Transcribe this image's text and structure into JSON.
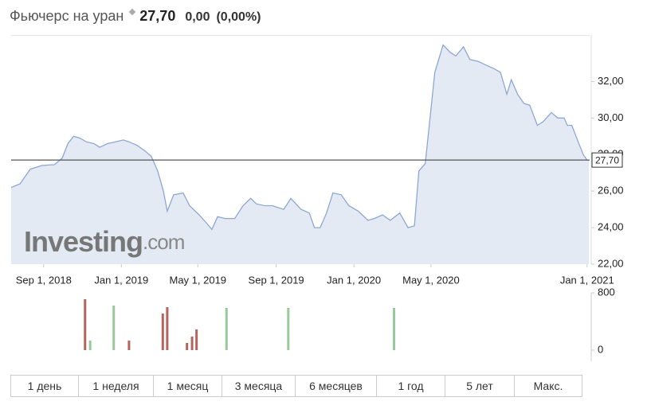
{
  "header": {
    "title": "Фьючерс на уран",
    "price": "27,70",
    "change": "0,00",
    "change_pct": "(0,00%)"
  },
  "watermark": {
    "brand": "Investing",
    "suffix": ".com"
  },
  "chart_data": [
    {
      "type": "area",
      "color": "#8ea7d3",
      "fill_color": "#e3eaf4",
      "x": [
        "2018-07-12",
        "2018-07-26",
        "2018-08-11",
        "2018-08-29",
        "2018-09-18",
        "2018-09-30",
        "2018-10-09",
        "2018-10-18",
        "2018-10-28",
        "2018-11-07",
        "2018-11-19",
        "2018-11-28",
        "2018-12-10",
        "2018-12-23",
        "2019-01-04",
        "2019-01-13",
        "2019-01-26",
        "2019-02-07",
        "2019-02-17",
        "2019-02-27",
        "2019-03-08",
        "2019-03-14",
        "2019-03-24",
        "2019-04-08",
        "2019-04-18",
        "2019-05-03",
        "2019-05-16",
        "2019-05-23",
        "2019-06-01",
        "2019-06-13",
        "2019-06-28",
        "2019-07-11",
        "2019-07-23",
        "2019-08-01",
        "2019-08-14",
        "2019-08-26",
        "2019-09-13",
        "2019-09-24",
        "2019-10-10",
        "2019-10-23",
        "2019-10-31",
        "2019-11-09",
        "2019-11-19",
        "2019-11-29",
        "2019-12-12",
        "2019-12-24",
        "2020-01-08",
        "2020-01-23",
        "2020-02-02",
        "2020-02-15",
        "2020-02-27",
        "2020-03-13",
        "2020-03-26",
        "2020-04-05",
        "2020-04-12",
        "2020-04-22",
        "2020-05-07",
        "2020-05-20",
        "2020-05-31",
        "2020-06-09",
        "2020-06-21",
        "2020-07-01",
        "2020-07-14",
        "2020-07-26",
        "2020-08-08",
        "2020-08-18",
        "2020-08-28",
        "2020-09-04",
        "2020-09-14",
        "2020-09-24",
        "2020-10-03",
        "2020-10-15",
        "2020-10-24",
        "2020-11-06",
        "2020-11-16",
        "2020-11-26",
        "2020-12-01",
        "2020-12-08",
        "2020-12-18",
        "2020-12-26",
        "2021-01-01",
        "2021-01-04"
      ],
      "values": [
        26.2,
        26.4,
        27.2,
        27.4,
        27.45,
        27.8,
        28.6,
        29.0,
        28.9,
        28.7,
        28.6,
        28.4,
        28.6,
        28.7,
        28.8,
        28.7,
        28.5,
        28.2,
        27.9,
        27.1,
        26.0,
        24.9,
        25.8,
        25.9,
        25.2,
        24.7,
        24.2,
        23.9,
        24.6,
        24.5,
        24.5,
        25.2,
        25.6,
        25.3,
        25.2,
        25.2,
        25.0,
        25.6,
        25.0,
        24.8,
        24.0,
        24.0,
        24.8,
        25.9,
        25.8,
        25.2,
        24.9,
        24.4,
        24.5,
        24.7,
        24.4,
        24.8,
        24.0,
        24.1,
        27.1,
        27.5,
        32.5,
        34.0,
        33.6,
        33.4,
        33.9,
        33.2,
        33.1,
        32.9,
        32.7,
        32.5,
        31.3,
        32.1,
        31.3,
        30.8,
        30.7,
        29.6,
        29.8,
        30.3,
        30.0,
        30.0,
        29.6,
        29.6,
        28.7,
        28.0,
        27.7,
        27.7
      ],
      "xlim": [
        "2018-07-12",
        "2021-01-05"
      ],
      "xticks": [
        {
          "value": "2018-09-01",
          "label": "Sep 1, 2018"
        },
        {
          "value": "2019-01-01",
          "label": "Jan 1, 2019"
        },
        {
          "value": "2019-05-01",
          "label": "May 1, 2019"
        },
        {
          "value": "2019-09-01",
          "label": "Sep 1, 2019"
        },
        {
          "value": "2020-01-01",
          "label": "Jan 1, 2020"
        },
        {
          "value": "2020-05-01",
          "label": "May 1, 2020"
        },
        {
          "value": "2021-01-01",
          "label": "Jan 1, 2021"
        }
      ],
      "ylim": [
        22,
        34.5
      ],
      "yticks": [
        {
          "value": 22,
          "label": "22,00"
        },
        {
          "value": 24,
          "label": "24,00"
        },
        {
          "value": 26,
          "label": "26,00"
        },
        {
          "value": 28,
          "label": "28,00"
        },
        {
          "value": 30,
          "label": "30,00"
        },
        {
          "value": 32,
          "label": "32,00"
        }
      ],
      "last_price": {
        "value": 27.7,
        "label": "27,70"
      }
    },
    {
      "type": "bar",
      "x": [
        "2018-11-05",
        "2018-11-13",
        "2018-12-20",
        "2019-01-13",
        "2019-03-07",
        "2019-03-14",
        "2019-04-14",
        "2019-04-22",
        "2019-04-29",
        "2019-06-15",
        "2019-09-20",
        "2020-03-04"
      ],
      "values": [
        711,
        133,
        622,
        133,
        511,
        600,
        100,
        189,
        289,
        589,
        589,
        589
      ],
      "colors": [
        "#b5645c",
        "#98c99a",
        "#98c99a",
        "#b5645c",
        "#b5645c",
        "#b5645c",
        "#b5645c",
        "#b5645c",
        "#b5645c",
        "#98c99a",
        "#98c99a",
        "#98c99a"
      ],
      "xlim": [
        "2018-07-12",
        "2021-01-05"
      ],
      "ylim": [
        0,
        800
      ],
      "yticks": [
        0,
        800
      ]
    }
  ],
  "periods": [
    "1 день",
    "1 неделя",
    "1 месяц",
    "3 месяца",
    "6 месяцев",
    "1 год",
    "5 лет",
    "Макс."
  ]
}
